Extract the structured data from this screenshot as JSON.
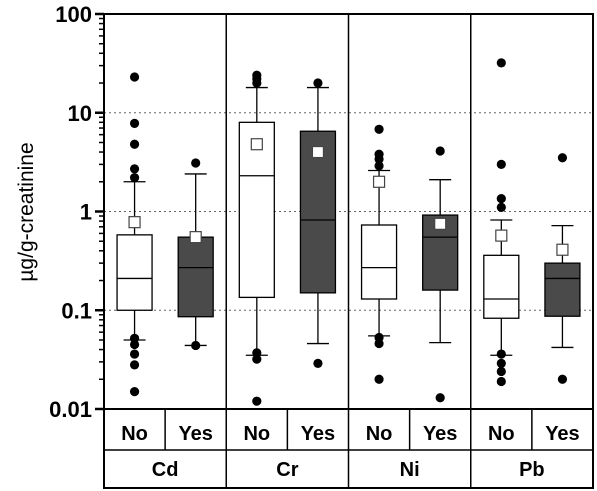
{
  "chart_data": {
    "type": "boxplot",
    "ylabel": "µg/g-creatinine",
    "yscale": "log",
    "ylim": [
      0.01,
      100
    ],
    "y_ticks": [
      "0.01",
      "0.1",
      "1",
      "10",
      "100"
    ],
    "grid": "dotted horizontal at 0.1, 1, 10",
    "groups": [
      "Cd",
      "Cr",
      "Ni",
      "Pb"
    ],
    "subgroups": [
      "No",
      "Yes"
    ],
    "colors": {
      "No": "#ffffff",
      "Yes": "#4a4a4a"
    },
    "boxes": [
      {
        "group": "Cd",
        "subgroup": "No",
        "q1": 0.1,
        "median": 0.21,
        "q3": 0.58,
        "whisker_low": 0.05,
        "whisker_high": 2.0,
        "mean": 0.78,
        "outliers": [
          23,
          7.8,
          4.8,
          2.7,
          2.2,
          0.052,
          0.045,
          0.036,
          0.028,
          0.015
        ]
      },
      {
        "group": "Cd",
        "subgroup": "Yes",
        "q1": 0.086,
        "median": 0.27,
        "q3": 0.55,
        "whisker_low": 0.044,
        "whisker_high": 2.4,
        "mean": 0.55,
        "outliers": [
          3.1,
          0.044
        ]
      },
      {
        "group": "Cr",
        "subgroup": "No",
        "q1": 0.135,
        "median": 2.3,
        "q3": 8.0,
        "whisker_low": 0.035,
        "whisker_high": 18,
        "mean": 4.8,
        "outliers": [
          24,
          22,
          20,
          0.037,
          0.032,
          0.012
        ]
      },
      {
        "group": "Cr",
        "subgroup": "Yes",
        "q1": 0.15,
        "median": 0.82,
        "q3": 6.5,
        "whisker_low": 0.046,
        "whisker_high": 18,
        "mean": 4.0,
        "outliers": [
          20,
          0.029
        ]
      },
      {
        "group": "Ni",
        "subgroup": "No",
        "q1": 0.13,
        "median": 0.27,
        "q3": 0.73,
        "whisker_low": 0.055,
        "whisker_high": 2.6,
        "mean": 2.0,
        "outliers": [
          6.8,
          3.8,
          3.4,
          2.9,
          0.053,
          0.046,
          0.02
        ]
      },
      {
        "group": "Ni",
        "subgroup": "Yes",
        "q1": 0.16,
        "median": 0.55,
        "q3": 0.92,
        "whisker_low": 0.047,
        "whisker_high": 2.1,
        "mean": 0.75,
        "outliers": [
          4.1,
          0.013
        ]
      },
      {
        "group": "Pb",
        "subgroup": "No",
        "q1": 0.083,
        "median": 0.13,
        "q3": 0.36,
        "whisker_low": 0.035,
        "whisker_high": 0.82,
        "mean": 0.57,
        "outliers": [
          32,
          3.0,
          1.35,
          1.1,
          0.036,
          0.029,
          0.024,
          0.019
        ]
      },
      {
        "group": "Pb",
        "subgroup": "Yes",
        "q1": 0.087,
        "median": 0.21,
        "q3": 0.3,
        "whisker_low": 0.042,
        "whisker_high": 0.72,
        "mean": 0.41,
        "outliers": [
          3.5,
          0.02
        ]
      }
    ]
  }
}
